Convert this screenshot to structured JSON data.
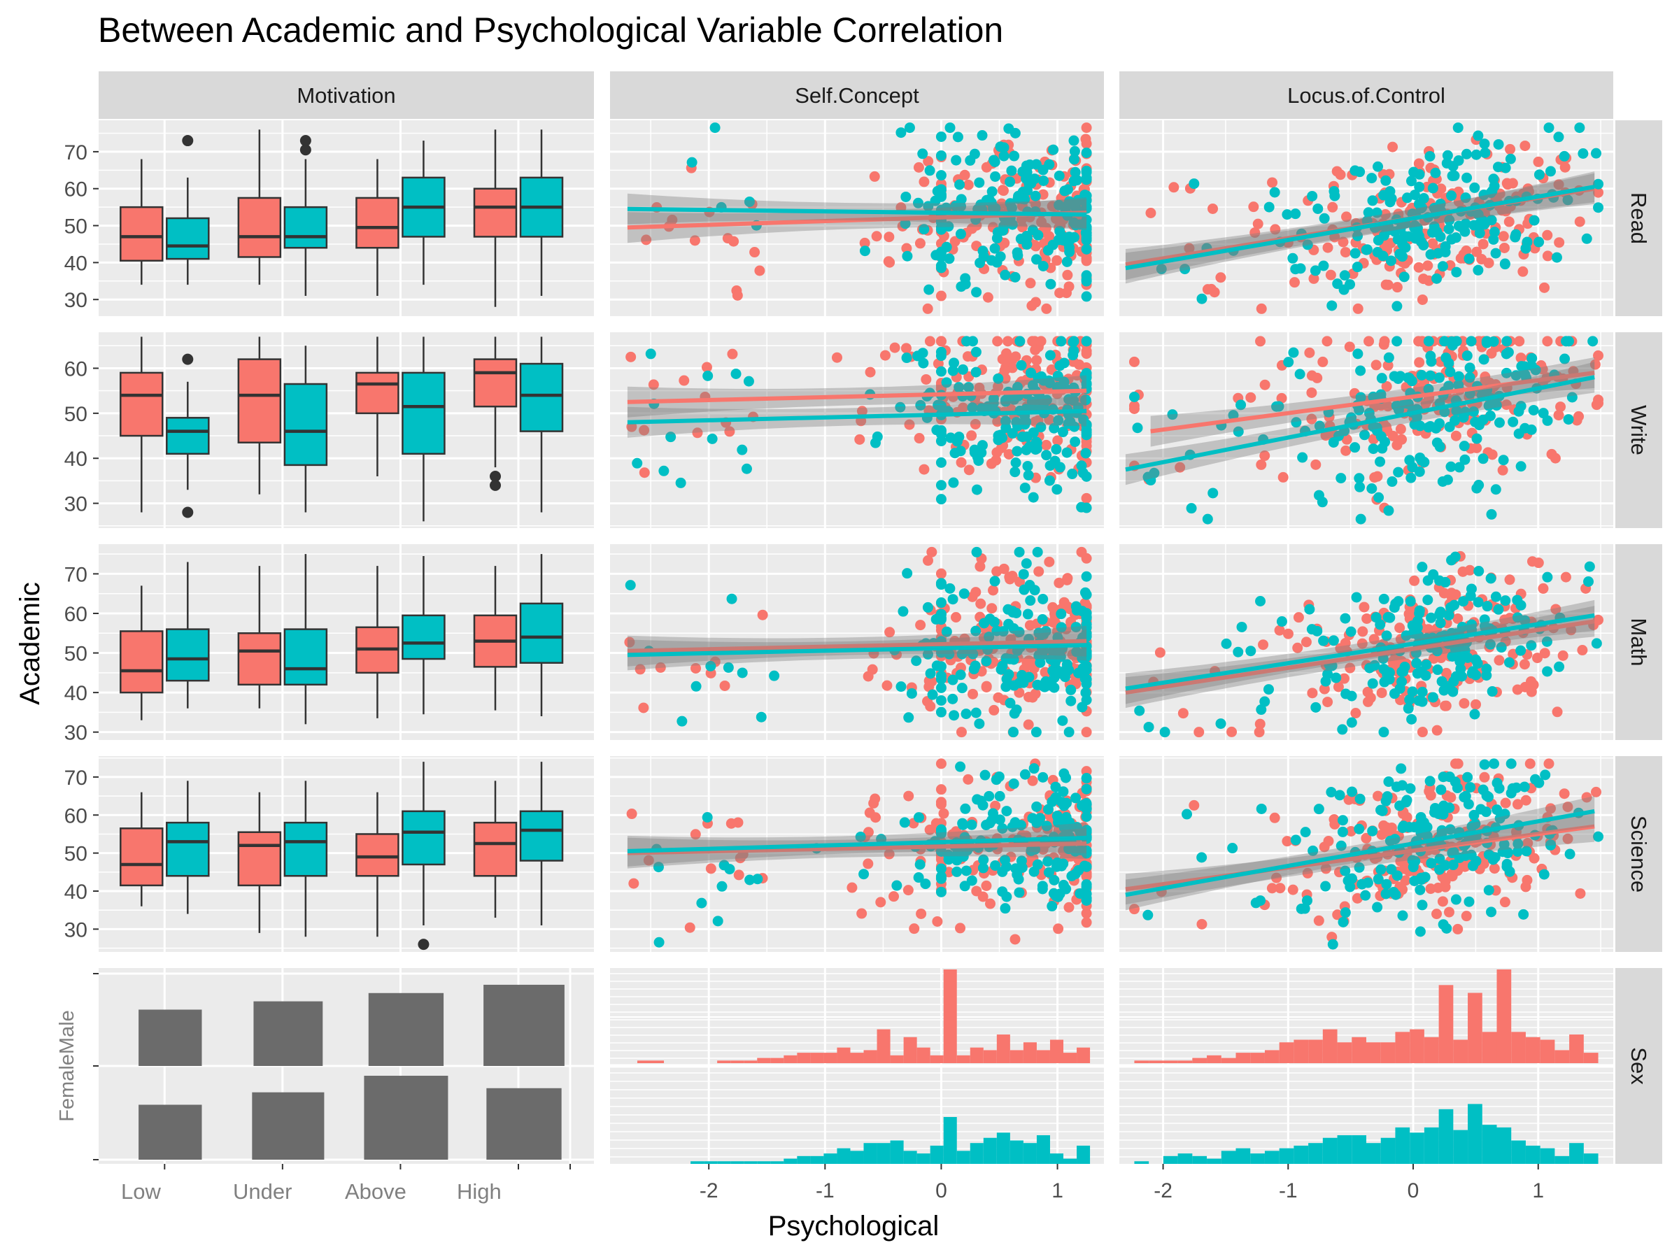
{
  "chart_data": {
    "type": "scatter",
    "title": "Between Academic and Psychological Variable Correlation",
    "xlabel": "Psychological",
    "ylabel": "Academic",
    "columns": [
      "Motivation",
      "Self.Concept",
      "Locus.of.Control"
    ],
    "rows": [
      "Read",
      "Write",
      "Math",
      "Science",
      "Sex"
    ],
    "colors": {
      "female": "#F8766D",
      "male": "#00BFC4",
      "bar": "#6B6B6B",
      "panel": "#EBEBEB",
      "strip": "#D9D9D9"
    },
    "motivation_levels": [
      "Low",
      "Under",
      "Above",
      "High"
    ],
    "sex_levels": [
      "Female",
      "Male"
    ],
    "x_ticks_continuous": [
      "-2",
      "-1",
      "0",
      "1"
    ],
    "self_concept_xlim": [
      -2.85,
      1.4
    ],
    "locus_xlim": [
      -2.35,
      1.6
    ],
    "academic_rows": [
      {
        "name": "Read",
        "ylim": [
          25.5,
          78.5
        ],
        "yticks": [
          30,
          40,
          50,
          60,
          70
        ],
        "boxplots": [
          {
            "level": "Low",
            "female": {
              "min": 34,
              "q1": 40.5,
              "med": 47,
              "q3": 55,
              "max": 68,
              "outliers": []
            },
            "male": {
              "min": 34,
              "q1": 41,
              "med": 44.5,
              "q3": 52,
              "max": 63,
              "outliers": [
                73
              ]
            }
          },
          {
            "level": "Under",
            "female": {
              "min": 34,
              "q1": 41.5,
              "med": 47,
              "q3": 57.5,
              "max": 76,
              "outliers": []
            },
            "male": {
              "min": 31,
              "q1": 44,
              "med": 47,
              "q3": 55,
              "max": 68,
              "outliers": [
                73,
                70.5
              ]
            }
          },
          {
            "level": "Above",
            "female": {
              "min": 31,
              "q1": 44,
              "med": 49.5,
              "q3": 57.5,
              "max": 68,
              "outliers": []
            },
            "male": {
              "min": 34,
              "q1": 47,
              "med": 55,
              "q3": 63,
              "max": 73,
              "outliers": []
            }
          },
          {
            "level": "High",
            "female": {
              "min": 28,
              "q1": 47,
              "med": 55,
              "q3": 60,
              "max": 76,
              "outliers": []
            },
            "male": {
              "min": 31,
              "q1": 47,
              "med": 55,
              "q3": 63,
              "max": 76,
              "outliers": []
            }
          }
        ],
        "self_concept_trend": {
          "female": [
            [
              -2.7,
              49.5
            ],
            [
              1.25,
              53.5
            ]
          ],
          "male": [
            [
              -2.7,
              54.5
            ],
            [
              1.25,
              53
            ]
          ]
        },
        "locus_trend": {
          "female": [
            [
              -2.3,
              39.5
            ],
            [
              1.45,
              60
            ]
          ],
          "male": [
            [
              -2.3,
              38.5
            ],
            [
              1.45,
              60.5
            ]
          ]
        }
      },
      {
        "name": "Write",
        "ylim": [
          24.5,
          68
        ],
        "yticks": [
          30,
          40,
          50,
          60
        ],
        "boxplots": [
          {
            "level": "Low",
            "female": {
              "min": 28,
              "q1": 45,
              "med": 54,
              "q3": 59,
              "max": 67,
              "outliers": []
            },
            "male": {
              "min": 33,
              "q1": 41,
              "med": 46,
              "q3": 49,
              "max": 57,
              "outliers": [
                62,
                28
              ]
            }
          },
          {
            "level": "Under",
            "female": {
              "min": 32,
              "q1": 43.5,
              "med": 54,
              "q3": 62,
              "max": 67,
              "outliers": []
            },
            "male": {
              "min": 28,
              "q1": 38.5,
              "med": 46,
              "q3": 56.5,
              "max": 65,
              "outliers": []
            }
          },
          {
            "level": "Above",
            "female": {
              "min": 36,
              "q1": 50,
              "med": 56.5,
              "q3": 59,
              "max": 67,
              "outliers": []
            },
            "male": {
              "min": 26,
              "q1": 41,
              "med": 51.5,
              "q3": 59,
              "max": 67,
              "outliers": []
            }
          },
          {
            "level": "High",
            "female": {
              "min": 38,
              "q1": 51.5,
              "med": 59,
              "q3": 62,
              "max": 67,
              "outliers": [
                36,
                34
              ]
            },
            "male": {
              "min": 28,
              "q1": 46,
              "med": 54,
              "q3": 61,
              "max": 67,
              "outliers": []
            }
          }
        ],
        "self_concept_trend": {
          "female": [
            [
              -2.7,
              52.5
            ],
            [
              1.25,
              55
            ]
          ],
          "male": [
            [
              -2.7,
              48
            ],
            [
              1.25,
              50.5
            ]
          ]
        },
        "locus_trend": {
          "female": [
            [
              -2.1,
              46
            ],
            [
              1.45,
              59
            ]
          ],
          "male": [
            [
              -2.3,
              37.5
            ],
            [
              1.45,
              58
            ]
          ]
        }
      },
      {
        "name": "Math",
        "ylim": [
          28,
          77.5
        ],
        "yticks": [
          30,
          40,
          50,
          60,
          70
        ],
        "boxplots": [
          {
            "level": "Low",
            "female": {
              "min": 33,
              "q1": 40,
              "med": 45.5,
              "q3": 55.5,
              "max": 67,
              "outliers": []
            },
            "male": {
              "min": 36,
              "q1": 43,
              "med": 48.5,
              "q3": 56,
              "max": 73,
              "outliers": []
            }
          },
          {
            "level": "Under",
            "female": {
              "min": 36,
              "q1": 42,
              "med": 50.5,
              "q3": 55,
              "max": 72,
              "outliers": []
            },
            "male": {
              "min": 32,
              "q1": 42,
              "med": 46,
              "q3": 56,
              "max": 75,
              "outliers": []
            }
          },
          {
            "level": "Above",
            "female": {
              "min": 33.5,
              "q1": 45,
              "med": 51,
              "q3": 56.5,
              "max": 72,
              "outliers": []
            },
            "male": {
              "min": 34.5,
              "q1": 48.5,
              "med": 52.5,
              "q3": 59.5,
              "max": 74.5,
              "outliers": []
            }
          },
          {
            "level": "High",
            "female": {
              "min": 35.5,
              "q1": 46.5,
              "med": 53,
              "q3": 59.5,
              "max": 72,
              "outliers": []
            },
            "male": {
              "min": 34,
              "q1": 47.5,
              "med": 54,
              "q3": 62.5,
              "max": 75,
              "outliers": []
            }
          }
        ],
        "self_concept_trend": {
          "female": [
            [
              -2.7,
              50.5
            ],
            [
              1.25,
              53
            ]
          ],
          "male": [
            [
              -2.7,
              49.5
            ],
            [
              1.25,
              52
            ]
          ]
        },
        "locus_trend": {
          "female": [
            [
              -2.3,
              40
            ],
            [
              1.45,
              58
            ]
          ],
          "male": [
            [
              -2.3,
              41
            ],
            [
              1.45,
              59.5
            ]
          ]
        }
      },
      {
        "name": "Science",
        "ylim": [
          24,
          75.5
        ],
        "yticks": [
          30,
          40,
          50,
          60,
          70
        ],
        "boxplots": [
          {
            "level": "Low",
            "female": {
              "min": 36,
              "q1": 41.5,
              "med": 47,
              "q3": 56.5,
              "max": 66,
              "outliers": []
            },
            "male": {
              "min": 34,
              "q1": 44,
              "med": 53,
              "q3": 58,
              "max": 69,
              "outliers": []
            }
          },
          {
            "level": "Under",
            "female": {
              "min": 29,
              "q1": 41.5,
              "med": 52,
              "q3": 55.5,
              "max": 66,
              "outliers": []
            },
            "male": {
              "min": 28,
              "q1": 44,
              "med": 53,
              "q3": 58,
              "max": 69,
              "outliers": []
            }
          },
          {
            "level": "Above",
            "female": {
              "min": 28,
              "q1": 44,
              "med": 49,
              "q3": 55,
              "max": 66,
              "outliers": []
            },
            "male": {
              "min": 31,
              "q1": 47,
              "med": 55.5,
              "q3": 61,
              "max": 74,
              "outliers": [
                26
              ]
            }
          },
          {
            "level": "High",
            "female": {
              "min": 33,
              "q1": 44,
              "med": 52.5,
              "q3": 58,
              "max": 69,
              "outliers": []
            },
            "male": {
              "min": 31,
              "q1": 48,
              "med": 56,
              "q3": 61,
              "max": 74,
              "outliers": []
            }
          }
        ],
        "self_concept_trend": {
          "female": [
            [
              -2.7,
              50
            ],
            [
              1.25,
              52.5
            ]
          ],
          "male": [
            [
              -2.7,
              50.5
            ],
            [
              1.25,
              54
            ]
          ]
        },
        "locus_trend": {
          "female": [
            [
              -2.3,
              40.5
            ],
            [
              1.45,
              57
            ]
          ],
          "male": [
            [
              -2.3,
              39
            ],
            [
              1.45,
              61
            ]
          ]
        }
      }
    ],
    "sex_by_motivation": [
      {
        "level": "Low",
        "female": 0.6,
        "male": 0.6
      },
      {
        "level": "Under",
        "female": 0.9,
        "male": 0.8
      },
      {
        "level": "Above",
        "female": 1.3,
        "male": 1.0
      },
      {
        "level": "High",
        "female": 1.0,
        "male": 1.2
      }
    ],
    "histogram_counts": {
      "self_concept": {
        "female": [
          0,
          1,
          1,
          0,
          0,
          0,
          0,
          1,
          1,
          1,
          2,
          2,
          3,
          4,
          4,
          4,
          6,
          4,
          5,
          13,
          3,
          10,
          6,
          3,
          36,
          3,
          6,
          5,
          11,
          5,
          8,
          5,
          9,
          4,
          6
        ],
        "male": [
          0,
          0,
          0,
          0,
          0,
          1,
          1,
          1,
          1,
          1,
          1,
          1,
          2,
          3,
          3,
          4,
          6,
          5,
          8,
          8,
          9,
          5,
          4,
          7,
          18,
          5,
          8,
          10,
          12,
          9,
          8,
          11,
          4,
          2,
          7
        ]
      },
      "locus_of_control": {
        "female": [
          1,
          1,
          1,
          1,
          2,
          3,
          2,
          4,
          4,
          5,
          8,
          9,
          9,
          13,
          8,
          10,
          8,
          8,
          12,
          13,
          10,
          30,
          9,
          27,
          12,
          36,
          12,
          10,
          9,
          5,
          11,
          4
        ],
        "male": [
          1,
          0,
          3,
          4,
          3,
          2,
          5,
          6,
          4,
          5,
          6,
          7,
          8,
          10,
          11,
          11,
          8,
          10,
          14,
          12,
          14,
          21,
          13,
          23,
          15,
          14,
          9,
          7,
          6,
          3,
          8,
          4
        ]
      }
    }
  }
}
